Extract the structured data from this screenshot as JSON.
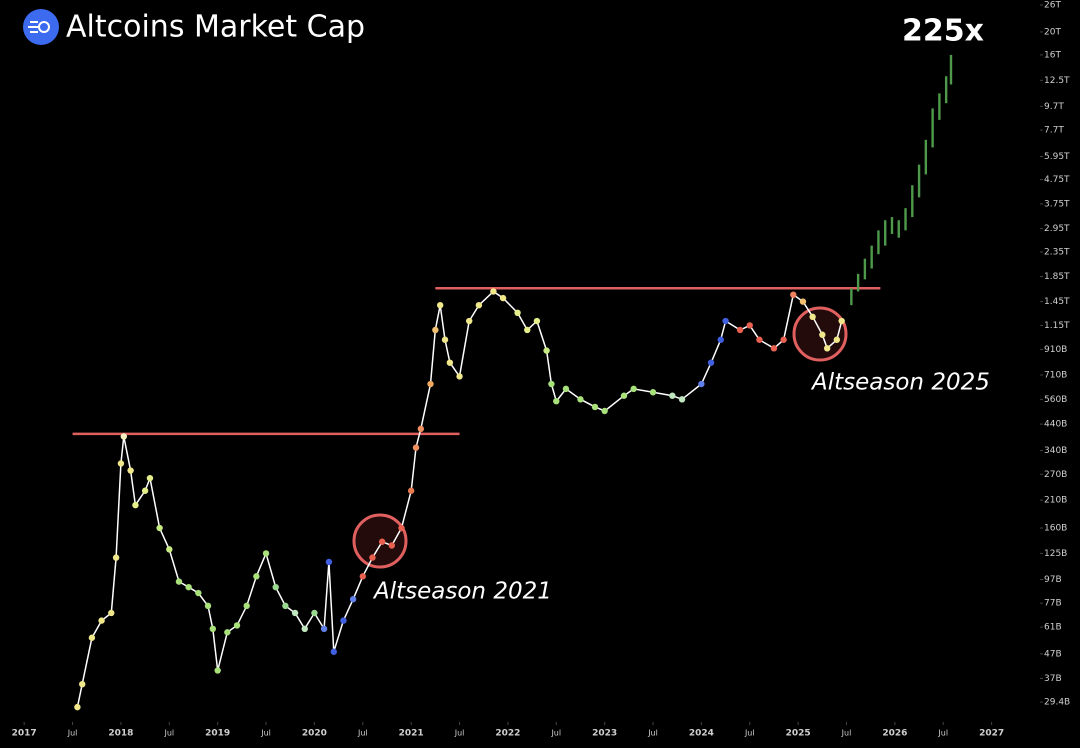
{
  "chart_data": {
    "type": "line",
    "title": "Altcoins Market Cap",
    "log_scale": true,
    "line_color": "#ffffff",
    "x": [
      2017.55,
      2017.6,
      2017.7,
      2017.8,
      2017.9,
      2017.95,
      2018.0,
      2018.03,
      2018.1,
      2018.15,
      2018.25,
      2018.3,
      2018.4,
      2018.5,
      2018.6,
      2018.7,
      2018.8,
      2018.9,
      2018.95,
      2019.0,
      2019.1,
      2019.2,
      2019.3,
      2019.4,
      2019.5,
      2019.6,
      2019.7,
      2019.8,
      2019.9,
      2020.0,
      2020.1,
      2020.15,
      2020.2,
      2020.3,
      2020.4,
      2020.5,
      2020.6,
      2020.7,
      2020.8,
      2020.9,
      2021.0,
      2021.05,
      2021.1,
      2021.2,
      2021.25,
      2021.3,
      2021.35,
      2021.4,
      2021.5,
      2021.6,
      2021.7,
      2021.85,
      2021.95,
      2022.1,
      2022.2,
      2022.3,
      2022.4,
      2022.45,
      2022.5,
      2022.6,
      2022.75,
      2022.9,
      2023.0,
      2023.2,
      2023.3,
      2023.5,
      2023.7,
      2023.8,
      2024.0,
      2024.1,
      2024.2,
      2024.25,
      2024.4,
      2024.5,
      2024.6,
      2024.75,
      2024.85,
      2024.95,
      2025.05,
      2025.15,
      2025.25,
      2025.3,
      2025.4,
      2025.45
    ],
    "values": [
      28,
      35,
      55,
      65,
      70,
      120,
      300,
      390,
      280,
      200,
      230,
      260,
      160,
      130,
      95,
      90,
      85,
      75,
      60,
      40,
      58,
      62,
      75,
      100,
      125,
      90,
      75,
      70,
      60,
      70,
      60,
      115,
      48,
      65,
      80,
      100,
      120,
      140,
      135,
      160,
      230,
      350,
      420,
      650,
      1100,
      1400,
      1000,
      800,
      700,
      1200,
      1400,
      1600,
      1500,
      1300,
      1100,
      1200,
      900,
      650,
      550,
      620,
      560,
      520,
      500,
      580,
      620,
      600,
      580,
      560,
      650,
      800,
      1000,
      1200,
      1100,
      1150,
      1000,
      920,
      1000,
      1550,
      1450,
      1250,
      1050,
      920,
      1000,
      1200
    ],
    "point_colors": [
      "#f0e68a",
      "#f0e68a",
      "#f0e68a",
      "#f0e68a",
      "#f0e68a",
      "#f0e68a",
      "#f0e68a",
      "#f5efc0",
      "#f0e68a",
      "#e4ee8a",
      "#e4ee8a",
      "#e4ee8a",
      "#c8ea82",
      "#c8ea82",
      "#a8e07a",
      "#a8e07a",
      "#a8e07a",
      "#a8e07a",
      "#a8e07a",
      "#a8e07a",
      "#a8e07a",
      "#a8e07a",
      "#a8e07a",
      "#a8e07a",
      "#a8e07a",
      "#9ad890",
      "#9ad890",
      "#c0e6c0",
      "#c0e6c0",
      "#9ad890",
      "#6080e8",
      "#4060e0",
      "#4060e0",
      "#4060e0",
      "#6080e8",
      "#e86050",
      "#e86050",
      "#e86050",
      "#e86050",
      "#e86050",
      "#e87a50",
      "#f09060",
      "#f09060",
      "#f0a860",
      "#f0c070",
      "#f0e68a",
      "#f0e68a",
      "#f0e68a",
      "#f0e68a",
      "#f0e68a",
      "#f0e68a",
      "#f0e68a",
      "#f0e68a",
      "#e4ee8a",
      "#e4ee8a",
      "#e4ee8a",
      "#c8ea82",
      "#a8e07a",
      "#a8e07a",
      "#a8e07a",
      "#a8e07a",
      "#a8e07a",
      "#a8e07a",
      "#a8e07a",
      "#a8e07a",
      "#a8e07a",
      "#c0e6c0",
      "#c0e6c0",
      "#6080e8",
      "#4060e0",
      "#4060e0",
      "#4060e0",
      "#e86050",
      "#e86050",
      "#e86050",
      "#e86050",
      "#e86050",
      "#f08060",
      "#f0c070",
      "#f0e68a",
      "#f0e68a",
      "#f0e68a",
      "#f0e68a",
      "#f0e68a"
    ],
    "projection": {
      "color": "#4f9a4a",
      "x": [
        2025.55,
        2025.62,
        2025.69,
        2025.76,
        2025.83,
        2025.9,
        2025.97,
        2026.04,
        2026.11,
        2026.18,
        2026.25,
        2026.32,
        2026.39,
        2026.46,
        2026.53,
        2026.58
      ],
      "low": [
        1400,
        1600,
        1800,
        2000,
        2300,
        2500,
        2800,
        2700,
        2900,
        3300,
        4000,
        5000,
        6500,
        8500,
        10000,
        12000
      ],
      "high": [
        1650,
        1900,
        2200,
        2500,
        2900,
        3200,
        3300,
        3200,
        3600,
        4500,
        5500,
        7000,
        9500,
        11000,
        13000,
        16000
      ]
    },
    "levels": [
      {
        "value": 400,
        "from": 2017.5,
        "to": 2021.5,
        "color": "#e06060"
      },
      {
        "value": 1650,
        "from": 2021.25,
        "to": 2025.85,
        "color": "#e06060"
      }
    ],
    "annotations": [
      "Altseason 2021",
      "Altseason 2025",
      "225x"
    ],
    "xlim": [
      2016.75,
      2027.5
    ],
    "ylim": [
      24.7,
      27300
    ],
    "xticks": [
      2017,
      {
        "value": 2017.5,
        "label": "Jul"
      },
      2018,
      {
        "value": 2018.5,
        "label": "Jul"
      },
      2019,
      {
        "value": 2019.5,
        "label": "Jul"
      },
      2020,
      {
        "value": 2020.5,
        "label": "Jul"
      },
      2021,
      {
        "value": 2021.5,
        "label": "Jul"
      },
      2022,
      {
        "value": 2022.5,
        "label": "Jul"
      },
      2023,
      {
        "value": 2023.5,
        "label": "Jul"
      },
      2024,
      {
        "value": 2024.5,
        "label": "Jul"
      },
      2025,
      {
        "value": 2025.5,
        "label": "Jul"
      },
      2026,
      {
        "value": 2026.5,
        "label": "Jul"
      },
      2027
    ],
    "yticks": [
      {
        "value": 26000,
        "label": "26T"
      },
      {
        "value": 20000,
        "label": "20T"
      },
      {
        "value": 16000,
        "label": "16T"
      },
      {
        "value": 12500,
        "label": "12.5T"
      },
      {
        "value": 9700,
        "label": "9.7T"
      },
      {
        "value": 7700,
        "label": "7.7T"
      },
      {
        "value": 5950,
        "label": "5.95T"
      },
      {
        "value": 4750,
        "label": "4.75T"
      },
      {
        "value": 3750,
        "label": "3.75T"
      },
      {
        "value": 2950,
        "label": "2.95T"
      },
      {
        "value": 2350,
        "label": "2.35T"
      },
      {
        "value": 1850,
        "label": "1.85T"
      },
      {
        "value": 1450,
        "label": "1.45T"
      },
      {
        "value": 1150,
        "label": "1.15T"
      },
      {
        "value": 910,
        "label": "910B"
      },
      {
        "value": 710,
        "label": "710B"
      },
      {
        "value": 560,
        "label": "560B"
      },
      {
        "value": 440,
        "label": "440B"
      },
      {
        "value": 340,
        "label": "340B"
      },
      {
        "value": 270,
        "label": "270B"
      },
      {
        "value": 210,
        "label": "210B"
      },
      {
        "value": 160,
        "label": "160B"
      },
      {
        "value": 125,
        "label": "125B"
      },
      {
        "value": 97,
        "label": "97B"
      },
      {
        "value": 77,
        "label": "77B"
      },
      {
        "value": 61,
        "label": "61B"
      },
      {
        "value": 47,
        "label": "47B"
      },
      {
        "value": 37,
        "label": "37B"
      },
      {
        "value": 29.4,
        "label": "29.4B"
      }
    ]
  }
}
